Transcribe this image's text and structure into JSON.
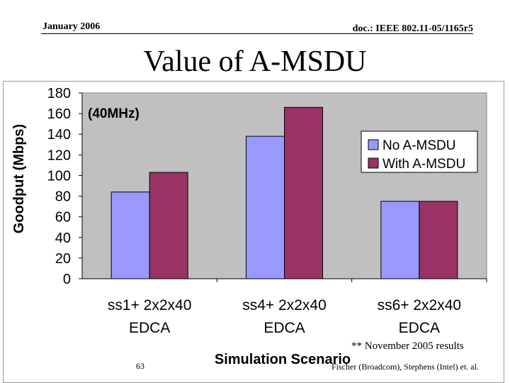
{
  "header": {
    "date": "January 2006",
    "doc_id": "doc.: IEEE 802.11-05/1165r5"
  },
  "slide": {
    "title": "Value of A-MSDU"
  },
  "footer": {
    "note": "** November 2005 results",
    "page_number": "63",
    "authors": "Fischer (Broadcom), Stephens (Intel) et. al."
  },
  "colors": {
    "no_amsdu": "#9999ff",
    "with_amsdu": "#993366",
    "plot_background": "#c0c0c0"
  },
  "chart_data": {
    "type": "bar",
    "title": "",
    "subtitle": "(40MHz)",
    "xlabel": "Simulation Scenario",
    "ylabel": "Goodput (Mbps)",
    "ylim": [
      0,
      180
    ],
    "yticks": [
      0,
      20,
      40,
      60,
      80,
      100,
      120,
      140,
      160,
      180
    ],
    "grid": false,
    "legend_position": "right",
    "categories": [
      [
        "ss1+ 2x2x40",
        "EDCA"
      ],
      [
        "ss4+ 2x2x40",
        "EDCA"
      ],
      [
        "ss6+ 2x2x40",
        "EDCA"
      ]
    ],
    "series": [
      {
        "name": "No A-MSDU",
        "color": "#9999ff",
        "values": [
          84,
          138,
          75
        ]
      },
      {
        "name": "With A-MSDU",
        "color": "#993366",
        "values": [
          103,
          166,
          75
        ]
      }
    ]
  }
}
